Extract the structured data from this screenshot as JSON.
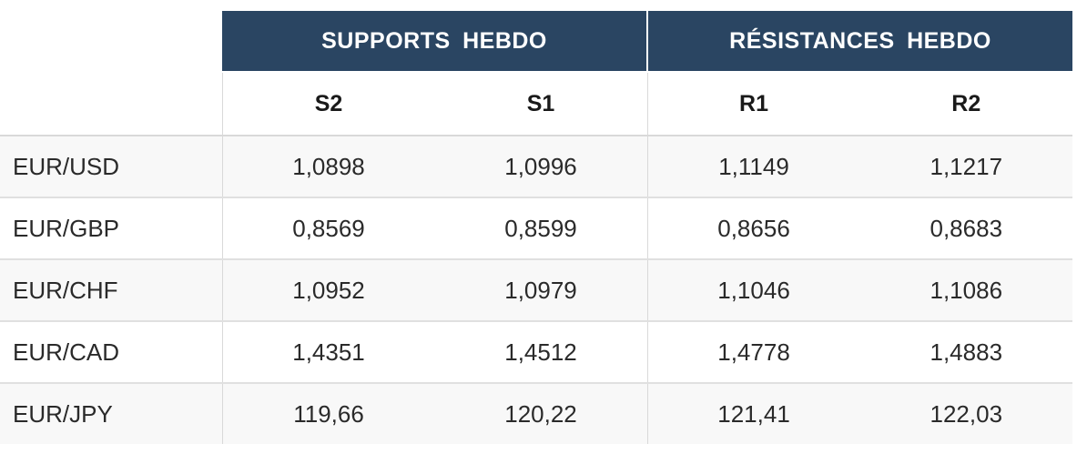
{
  "table": {
    "groups": {
      "supports": "SUPPORTS  HEBDO",
      "resistances": "RÉSISTANCES  HEBDO"
    },
    "columns": [
      "S2",
      "S1",
      "R1",
      "R2"
    ],
    "rows": [
      {
        "pair": "EUR/USD",
        "s2": "1,0898",
        "s1": "1,0996",
        "r1": "1,1149",
        "r2": "1,1217"
      },
      {
        "pair": "EUR/GBP",
        "s2": "0,8569",
        "s1": "0,8599",
        "r1": "0,8656",
        "r2": "0,8683"
      },
      {
        "pair": "EUR/CHF",
        "s2": "1,0952",
        "s1": "1,0979",
        "r1": "1,1046",
        "r2": "1,1086"
      },
      {
        "pair": "EUR/CAD",
        "s2": "1,4351",
        "s1": "1,4512",
        "r1": "1,4778",
        "r2": "1,4883"
      },
      {
        "pair": "EUR/JPY",
        "s2": "119,66",
        "s1": "120,22",
        "r1": "121,41",
        "r2": "122,03"
      }
    ]
  },
  "colors": {
    "header_bg": "#2a4562",
    "header_text": "#ffffff",
    "row_alt_bg": "#f8f8f8"
  }
}
